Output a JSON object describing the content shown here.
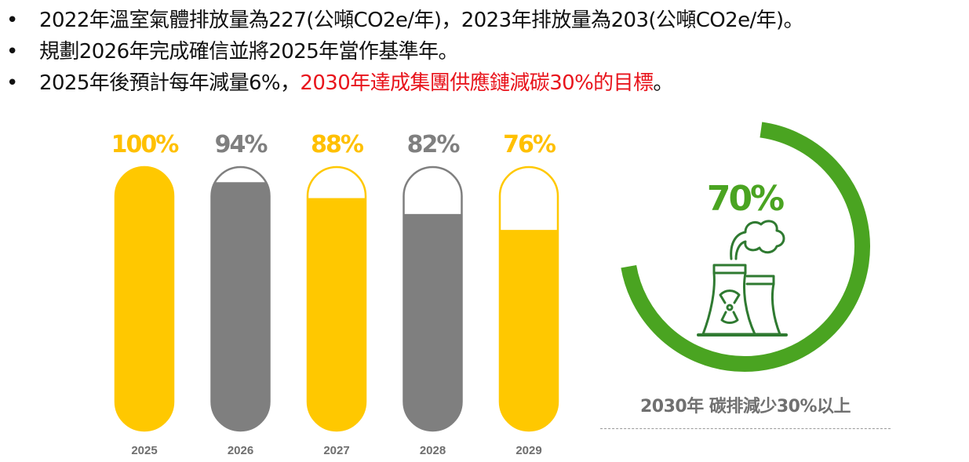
{
  "bullets": [
    {
      "text": "2022年溫室氣體排放量為227(公噸CO2e/年)，2023年排放量為203(公噸CO2e/年)。",
      "highlight": ""
    },
    {
      "text": "規劃2026年完成確信並將2025年當作基準年。",
      "highlight": ""
    },
    {
      "text": "2025年後預計每年減量6%，",
      "highlight": "2030年達成集團供應鏈減碳30%的目標",
      "suffix": "。"
    }
  ],
  "chart_data": {
    "type": "bar",
    "categories": [
      "2025",
      "2026",
      "2027",
      "2028",
      "2029"
    ],
    "values": [
      100,
      94,
      88,
      82,
      76
    ],
    "value_labels": [
      "100%",
      "94%",
      "88%",
      "82%",
      "76%"
    ],
    "ylim": [
      0,
      100
    ],
    "bar_colors": [
      "#ffc800",
      "#7f7f7f",
      "#ffc800",
      "#7f7f7f",
      "#ffc800"
    ],
    "label_colors": [
      "#ffc000",
      "#7f7f7f",
      "#ffc000",
      "#7f7f7f",
      "#ffc000"
    ]
  },
  "target": {
    "value": 70,
    "label": "70%",
    "color": "#4aa421",
    "icon": "factory-emission-icon",
    "caption": "2030年 碳排減少30%以上"
  }
}
